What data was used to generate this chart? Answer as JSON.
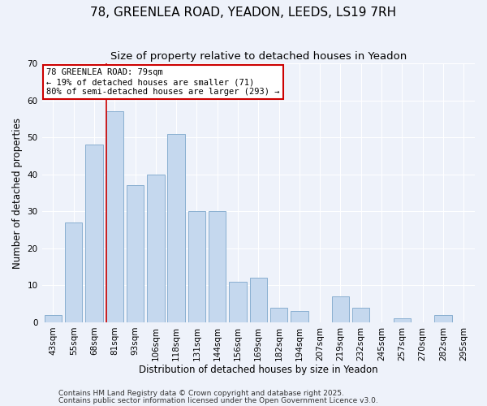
{
  "title": "78, GREENLEA ROAD, YEADON, LEEDS, LS19 7RH",
  "subtitle": "Size of property relative to detached houses in Yeadon",
  "xlabel": "Distribution of detached houses by size in Yeadon",
  "ylabel": "Number of detached properties",
  "categories": [
    "43sqm",
    "55sqm",
    "68sqm",
    "81sqm",
    "93sqm",
    "106sqm",
    "118sqm",
    "131sqm",
    "144sqm",
    "156sqm",
    "169sqm",
    "182sqm",
    "194sqm",
    "207sqm",
    "219sqm",
    "232sqm",
    "245sqm",
    "257sqm",
    "270sqm",
    "282sqm",
    "295sqm"
  ],
  "values": [
    2,
    27,
    48,
    57,
    37,
    40,
    51,
    30,
    30,
    11,
    12,
    4,
    3,
    0,
    7,
    4,
    0,
    1,
    0,
    2,
    0
  ],
  "bar_color": "#c5d8ee",
  "bar_edge_color": "#89afd0",
  "vline_x_index": 3,
  "vline_color": "#cc0000",
  "annotation_line1": "78 GREENLEA ROAD: 79sqm",
  "annotation_line2": "← 19% of detached houses are smaller (71)",
  "annotation_line3": "80% of semi-detached houses are larger (293) →",
  "annotation_box_color": "#ffffff",
  "annotation_box_edge": "#cc0000",
  "ylim": [
    0,
    70
  ],
  "yticks": [
    0,
    10,
    20,
    30,
    40,
    50,
    60,
    70
  ],
  "footer1": "Contains HM Land Registry data © Crown copyright and database right 2025.",
  "footer2": "Contains public sector information licensed under the Open Government Licence v3.0.",
  "bg_color": "#eef2fa",
  "title_fontsize": 11,
  "subtitle_fontsize": 9.5,
  "axis_label_fontsize": 8.5,
  "tick_fontsize": 7.5,
  "annotation_fontsize": 7.5,
  "footer_fontsize": 6.5
}
